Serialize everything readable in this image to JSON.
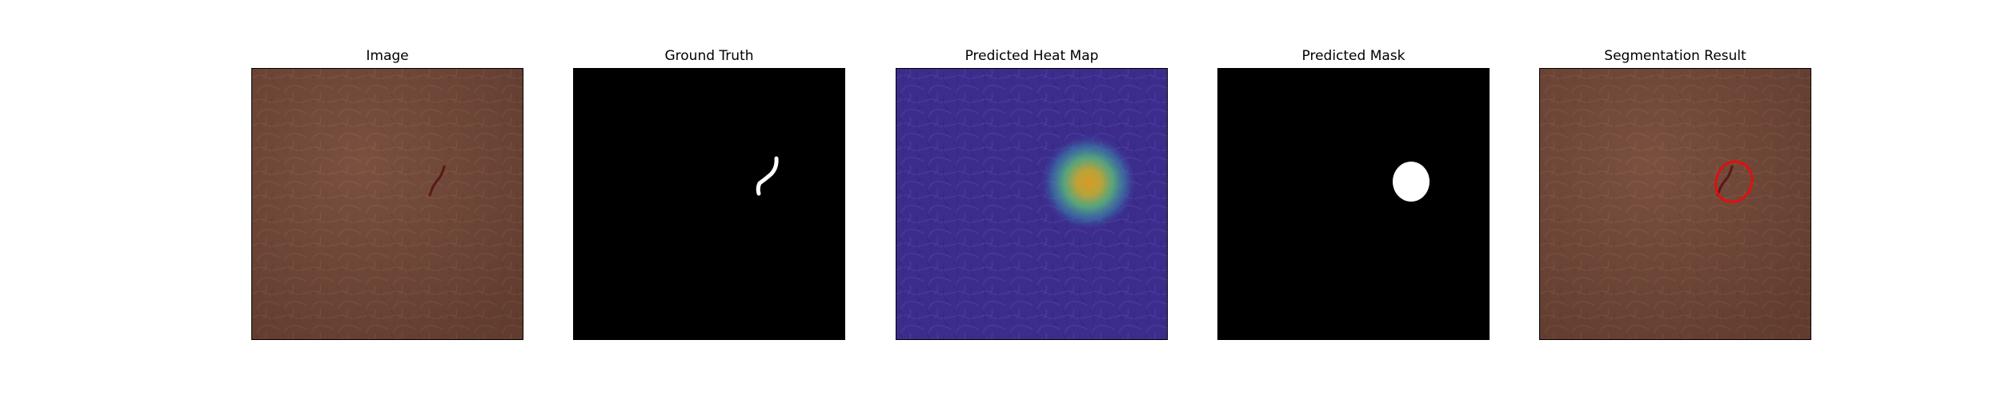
{
  "figure": {
    "panels": [
      {
        "title": "Image"
      },
      {
        "title": "Ground Truth"
      },
      {
        "title": "Predicted Heat Map"
      },
      {
        "title": "Predicted Mask"
      },
      {
        "title": "Segmentation Result"
      }
    ]
  },
  "colors": {
    "leather_base": "#6e4637",
    "leather_light": "#8a5c4a",
    "defect": "#5a1a18",
    "mask_bg": "#000000",
    "mask_fg": "#ffffff",
    "heatmap_bg": "#3a2a8a",
    "heatmap_hot": "#e0a020",
    "contour": "#e01010"
  }
}
